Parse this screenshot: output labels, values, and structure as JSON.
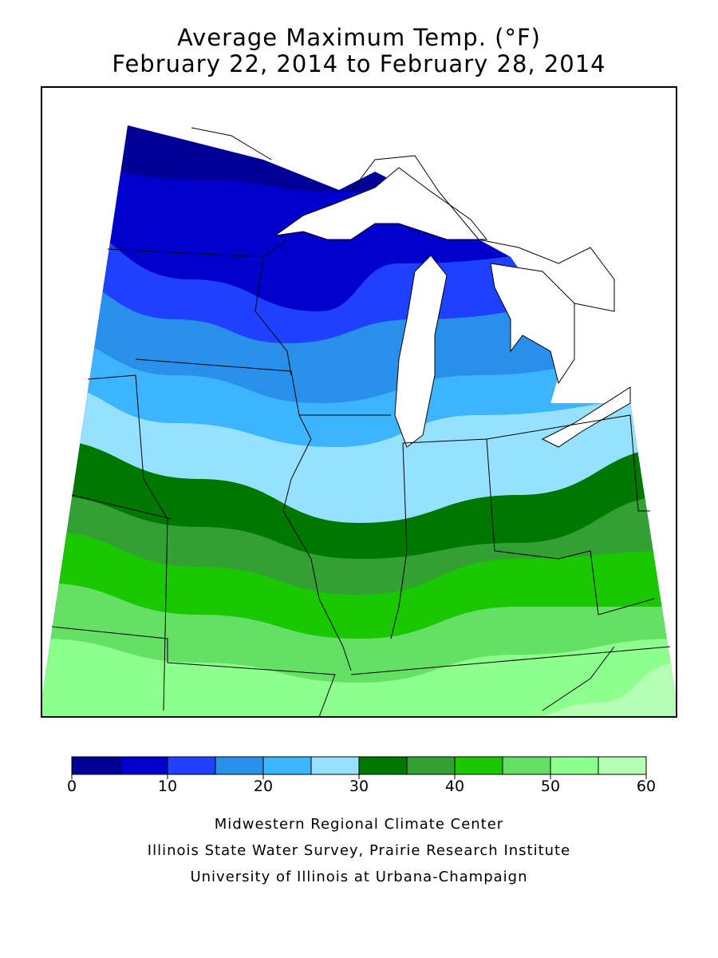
{
  "title": {
    "line1": "Average Maximum Temp. (°F)",
    "line2": "February 22, 2014 to February 28, 2014"
  },
  "legend": {
    "bins": [
      {
        "range": [
          0,
          5
        ],
        "color": "#000096"
      },
      {
        "range": [
          5,
          10
        ],
        "color": "#0000cd"
      },
      {
        "range": [
          10,
          15
        ],
        "color": "#2040ff"
      },
      {
        "range": [
          15,
          20
        ],
        "color": "#2890eb"
      },
      {
        "range": [
          20,
          25
        ],
        "color": "#3cb4ff"
      },
      {
        "range": [
          25,
          30
        ],
        "color": "#96e1ff"
      },
      {
        "range": [
          30,
          35
        ],
        "color": "#007800"
      },
      {
        "range": [
          35,
          40
        ],
        "color": "#32a032"
      },
      {
        "range": [
          40,
          45
        ],
        "color": "#19c800"
      },
      {
        "range": [
          45,
          50
        ],
        "color": "#64e164"
      },
      {
        "range": [
          50,
          55
        ],
        "color": "#8cff8c"
      },
      {
        "range": [
          55,
          60
        ],
        "color": "#b4ffb4"
      }
    ],
    "tick_labels": [
      "0",
      "10",
      "20",
      "30",
      "40",
      "50",
      "60"
    ]
  },
  "credits": {
    "line1": "Midwestern Regional Climate Center",
    "line2": "Illinois State Water Survey, Prairie Research Institute",
    "line3": "University of Illinois at Urbana-Champaign"
  }
}
